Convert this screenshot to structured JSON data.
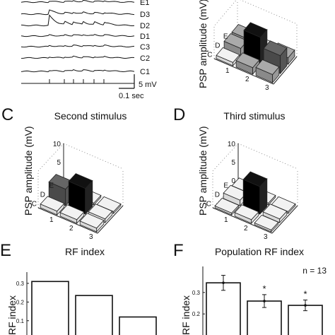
{
  "panels": {
    "C": {
      "letter": "C",
      "title": "Second stimulus"
    },
    "D": {
      "letter": "D",
      "title": "Third stimulus"
    },
    "E": {
      "letter": "E",
      "title": "RF index"
    },
    "F": {
      "letter": "F",
      "title": "Population RF index",
      "n_label": "n = 13"
    }
  },
  "traces": {
    "labels": [
      "E1",
      "D3",
      "D2",
      "D1",
      "C3",
      "C2",
      "C1"
    ],
    "scale_v": "5 mV",
    "scale_t": "0.1 sec"
  },
  "chart_data": [
    {
      "panel": "B",
      "type": "bar3d",
      "ylabel": "PSP amplitude (mV)",
      "rows": [
        "E",
        "D",
        "C"
      ],
      "cols": [
        "1",
        "2",
        "3"
      ],
      "values": [
        [
          2.5,
          1.5,
          2.0
        ],
        [
          2.5,
          8.5,
          5.5
        ],
        [
          1.0,
          2.0,
          2.5
        ]
      ]
    },
    {
      "panel": "C",
      "type": "bar3d",
      "ylabel": "PSP amplitude (mV)",
      "zticks": [
        "0",
        "5",
        "10"
      ],
      "zlim": [
        0,
        10
      ],
      "rows": [
        "E",
        "D",
        "C"
      ],
      "cols": [
        "1",
        "2",
        "3"
      ],
      "values": [
        [
          1.0,
          0.5,
          0.5
        ],
        [
          4.5,
          7.0,
          1.0
        ],
        [
          1.0,
          1.0,
          1.0
        ]
      ]
    },
    {
      "panel": "D",
      "type": "bar3d",
      "ylabel": "PSP amplitude (mV)",
      "zticks": [
        "0",
        "5",
        "10"
      ],
      "zlim": [
        0,
        10
      ],
      "rows": [
        "E",
        "D",
        "C"
      ],
      "cols": [
        "1",
        "2",
        "3"
      ],
      "values": [
        [
          1.0,
          0.5,
          0.5
        ],
        [
          1.5,
          7.5,
          1.0
        ],
        [
          0.5,
          1.0,
          0.5
        ]
      ]
    },
    {
      "panel": "E",
      "type": "bar",
      "ylabel": "RF index",
      "yticks": [
        "0.1",
        "0.2",
        "0.3"
      ],
      "ylim": [
        0.05,
        0.33
      ],
      "values": [
        0.31,
        0.235,
        0.12
      ]
    },
    {
      "panel": "F",
      "type": "bar",
      "ylabel": "RF index",
      "yticks": [
        "0.2",
        "0.3"
      ],
      "ylim": [
        0.115,
        0.395
      ],
      "values": [
        0.345,
        0.26,
        0.24
      ],
      "errors": [
        0.035,
        0.03,
        0.025
      ],
      "significance": [
        "",
        "*",
        "*"
      ]
    }
  ]
}
